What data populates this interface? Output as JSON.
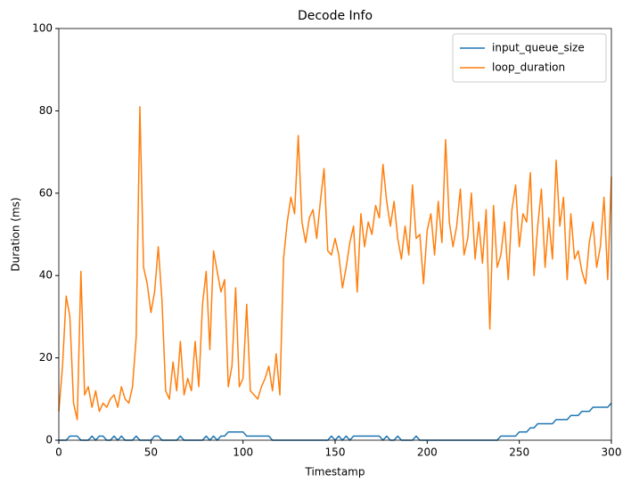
{
  "chart_data": {
    "type": "line",
    "title": "Decode Info",
    "xlabel": "Timestamp",
    "ylabel": "Duration (ms)",
    "xlim": [
      0,
      300
    ],
    "ylim": [
      0,
      100
    ],
    "xticks": [
      0,
      50,
      100,
      150,
      200,
      250,
      300
    ],
    "yticks": [
      0,
      20,
      40,
      60,
      80,
      100
    ],
    "legend": "upper right",
    "grid": false,
    "x": [
      0,
      2,
      4,
      6,
      8,
      10,
      12,
      14,
      16,
      18,
      20,
      22,
      24,
      26,
      28,
      30,
      32,
      34,
      36,
      38,
      40,
      42,
      44,
      46,
      48,
      50,
      52,
      54,
      56,
      58,
      60,
      62,
      64,
      66,
      68,
      70,
      72,
      74,
      76,
      78,
      80,
      82,
      84,
      86,
      88,
      90,
      92,
      94,
      96,
      98,
      100,
      102,
      104,
      106,
      108,
      110,
      112,
      114,
      116,
      118,
      120,
      122,
      124,
      126,
      128,
      130,
      132,
      134,
      136,
      138,
      140,
      142,
      144,
      146,
      148,
      150,
      152,
      154,
      156,
      158,
      160,
      162,
      164,
      166,
      168,
      170,
      172,
      174,
      176,
      178,
      180,
      182,
      184,
      186,
      188,
      190,
      192,
      194,
      196,
      198,
      200,
      202,
      204,
      206,
      208,
      210,
      212,
      214,
      216,
      218,
      220,
      222,
      224,
      226,
      228,
      230,
      232,
      234,
      236,
      238,
      240,
      242,
      244,
      246,
      248,
      250,
      252,
      254,
      256,
      258,
      260,
      262,
      264,
      266,
      268,
      270,
      272,
      274,
      276,
      278,
      280,
      282,
      284,
      286,
      288,
      290,
      292,
      294,
      296,
      298,
      300
    ],
    "series": [
      {
        "name": "input_queue_size",
        "color": "#1f77b4",
        "values": [
          0,
          0,
          0,
          1,
          1,
          1,
          0,
          0,
          0,
          1,
          0,
          1,
          1,
          0,
          0,
          1,
          0,
          1,
          0,
          0,
          0,
          1,
          0,
          0,
          0,
          0,
          1,
          1,
          0,
          0,
          0,
          0,
          0,
          1,
          0,
          0,
          0,
          0,
          0,
          0,
          1,
          0,
          1,
          0,
          1,
          1,
          2,
          2,
          2,
          2,
          2,
          1,
          1,
          1,
          1,
          1,
          1,
          1,
          0,
          0,
          0,
          0,
          0,
          0,
          0,
          0,
          0,
          0,
          0,
          0,
          0,
          0,
          0,
          0,
          1,
          0,
          1,
          0,
          1,
          0,
          1,
          1,
          1,
          1,
          1,
          1,
          1,
          1,
          0,
          1,
          0,
          0,
          1,
          0,
          0,
          0,
          0,
          1,
          0,
          0,
          0,
          0,
          0,
          0,
          0,
          0,
          0,
          0,
          0,
          0,
          0,
          0,
          0,
          0,
          0,
          0,
          0,
          0,
          0,
          0,
          1,
          1,
          1,
          1,
          1,
          2,
          2,
          2,
          3,
          3,
          4,
          4,
          4,
          4,
          4,
          5,
          5,
          5,
          5,
          6,
          6,
          6,
          7,
          7,
          7,
          8,
          8,
          8,
          8,
          8,
          9
        ]
      },
      {
        "name": "loop_duration",
        "color": "#ff7f0e",
        "values": [
          7,
          18,
          35,
          30,
          9,
          5,
          41,
          11,
          13,
          8,
          12,
          7,
          9,
          8,
          10,
          11,
          8,
          13,
          10,
          9,
          13,
          25,
          81,
          42,
          38,
          31,
          36,
          47,
          34,
          12,
          10,
          19,
          12,
          24,
          11,
          15,
          12,
          24,
          13,
          33,
          41,
          22,
          46,
          41,
          36,
          39,
          13,
          18,
          37,
          13,
          15,
          33,
          12,
          11,
          10,
          13,
          15,
          18,
          12,
          21,
          11,
          44,
          53,
          59,
          55,
          74,
          53,
          48,
          54,
          56,
          49,
          58,
          66,
          46,
          45,
          49,
          45,
          37,
          42,
          48,
          52,
          36,
          55,
          47,
          53,
          50,
          57,
          54,
          67,
          58,
          52,
          58,
          49,
          44,
          52,
          45,
          62,
          49,
          50,
          38,
          51,
          55,
          45,
          58,
          48,
          73,
          53,
          47,
          52,
          61,
          45,
          49,
          60,
          44,
          53,
          43,
          56,
          27,
          57,
          42,
          45,
          53,
          39,
          56,
          62,
          47,
          55,
          53,
          65,
          40,
          52,
          61,
          42,
          54,
          44,
          68,
          52,
          59,
          39,
          55,
          44,
          46,
          41,
          38,
          48,
          53,
          42,
          47,
          59,
          39,
          64
        ]
      }
    ]
  }
}
